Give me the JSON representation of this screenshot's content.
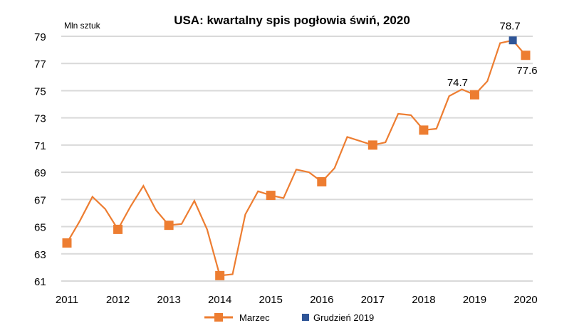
{
  "chart_data": {
    "type": "line",
    "title": "USA: kwartalny spis pogłowia świń, 2020",
    "ylabel": "Mln sztuk",
    "xlabel": "",
    "ylim": [
      61,
      79
    ],
    "yticks": [
      61,
      63,
      65,
      67,
      69,
      71,
      73,
      75,
      77,
      79
    ],
    "xticks": [
      "2011",
      "2012",
      "2013",
      "2014",
      "2015",
      "2016",
      "2017",
      "2018",
      "2019",
      "2020"
    ],
    "grid": true,
    "legend_placement": "bottom",
    "colors": {
      "line": "#ED7D31",
      "dec2019": "#2F5597",
      "grid": "#D9D9D9"
    },
    "series": [
      {
        "name": "Marzec",
        "x": [
          "2011 Q1",
          "2011 Q2",
          "2011 Q3",
          "2011 Q4",
          "2012 Q1",
          "2012 Q2",
          "2012 Q3",
          "2012 Q4",
          "2013 Q1",
          "2013 Q2",
          "2013 Q3",
          "2013 Q4",
          "2014 Q1",
          "2014 Q2",
          "2014 Q3",
          "2014 Q4",
          "2015 Q1",
          "2015 Q2",
          "2015 Q3",
          "2015 Q4",
          "2016 Q1",
          "2016 Q2",
          "2016 Q3",
          "2016 Q4",
          "2017 Q1",
          "2017 Q2",
          "2017 Q3",
          "2017 Q4",
          "2018 Q1",
          "2018 Q2",
          "2018 Q3",
          "2018 Q4",
          "2019 Q1",
          "2019 Q2",
          "2019 Q3",
          "2019 Q4",
          "2020 Q1"
        ],
        "values": [
          63.8,
          65.4,
          67.2,
          66.3,
          64.8,
          66.5,
          68.0,
          66.2,
          65.1,
          65.2,
          66.9,
          64.8,
          61.4,
          61.5,
          65.9,
          67.6,
          67.3,
          67.1,
          69.2,
          69.0,
          68.3,
          69.3,
          71.6,
          71.3,
          71.0,
          71.2,
          73.3,
          73.2,
          72.1,
          72.2,
          74.6,
          75.1,
          74.7,
          75.7,
          78.5,
          78.7,
          77.6
        ]
      },
      {
        "name": "Grudzień 2019",
        "x": [
          "2019 Q4"
        ],
        "values": [
          78.7
        ]
      }
    ],
    "data_labels": [
      {
        "x": "2019 Q1",
        "text": "74.7"
      },
      {
        "x": "2019 Q4",
        "text": "78.7"
      },
      {
        "x": "2020 Q1",
        "text": "77.6"
      }
    ]
  }
}
